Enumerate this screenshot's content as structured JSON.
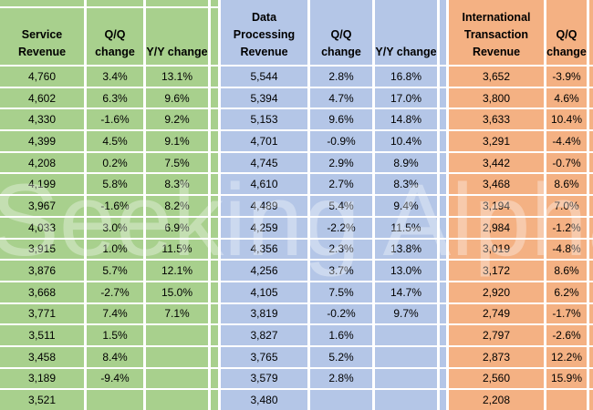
{
  "watermark": "Seeking Alpha",
  "colors": {
    "green": "#a8d08d",
    "blue": "#b4c6e7",
    "orange": "#f4b183",
    "gridline": "#ffffff",
    "text": "#000000"
  },
  "chart_data": {
    "type": "table",
    "column_groups": [
      {
        "color": "green",
        "columns": [
          "Service Revenue",
          "Q/Q change",
          "Y/Y change"
        ]
      },
      {
        "color": "blue",
        "columns": [
          "Data Processing Revenue",
          "Q/Q change",
          "Y/Y change"
        ]
      },
      {
        "color": "orange",
        "columns": [
          "International Transaction Revenue",
          "Q/Q change"
        ]
      }
    ],
    "headers": [
      "Service Revenue",
      "Q/Q change",
      "Y/Y change",
      "Data Processing Revenue",
      "Q/Q change",
      "Y/Y change",
      "International Transaction Revenue",
      "Q/Q change"
    ],
    "rows": [
      [
        "4,760",
        "3.4%",
        "13.1%",
        "5,544",
        "2.8%",
        "16.8%",
        "3,652",
        "-3.9%"
      ],
      [
        "4,602",
        "6.3%",
        "9.6%",
        "5,394",
        "4.7%",
        "17.0%",
        "3,800",
        "4.6%"
      ],
      [
        "4,330",
        "-1.6%",
        "9.2%",
        "5,153",
        "9.6%",
        "14.8%",
        "3,633",
        "10.4%"
      ],
      [
        "4,399",
        "4.5%",
        "9.1%",
        "4,701",
        "-0.9%",
        "10.4%",
        "3,291",
        "-4.4%"
      ],
      [
        "4,208",
        "0.2%",
        "7.5%",
        "4,745",
        "2.9%",
        "8.9%",
        "3,442",
        "-0.7%"
      ],
      [
        "4,199",
        "5.8%",
        "8.3%",
        "4,610",
        "2.7%",
        "8.3%",
        "3,468",
        "8.6%"
      ],
      [
        "3,967",
        "-1.6%",
        "8.2%",
        "4,489",
        "5.4%",
        "9.4%",
        "3,194",
        "7.0%"
      ],
      [
        "4,033",
        "3.0%",
        "6.9%",
        "4,259",
        "-2.2%",
        "11.5%",
        "2,984",
        "-1.2%"
      ],
      [
        "3,915",
        "1.0%",
        "11.5%",
        "4,356",
        "2.3%",
        "13.8%",
        "3,019",
        "-4.8%"
      ],
      [
        "3,876",
        "5.7%",
        "12.1%",
        "4,256",
        "3.7%",
        "13.0%",
        "3,172",
        "8.6%"
      ],
      [
        "3,668",
        "-2.7%",
        "15.0%",
        "4,105",
        "7.5%",
        "14.7%",
        "2,920",
        "6.2%"
      ],
      [
        "3,771",
        "7.4%",
        "7.1%",
        "3,819",
        "-0.2%",
        "9.7%",
        "2,749",
        "-1.7%"
      ],
      [
        "3,511",
        "1.5%",
        "",
        "3,827",
        "1.6%",
        "",
        "2,797",
        "-2.6%"
      ],
      [
        "3,458",
        "8.4%",
        "",
        "3,765",
        "5.2%",
        "",
        "2,873",
        "12.2%"
      ],
      [
        "3,189",
        "-9.4%",
        "",
        "3,579",
        "2.8%",
        "",
        "2,560",
        "15.9%"
      ],
      [
        "3,521",
        "",
        "",
        "3,480",
        "",
        "",
        "2,208",
        ""
      ]
    ]
  }
}
